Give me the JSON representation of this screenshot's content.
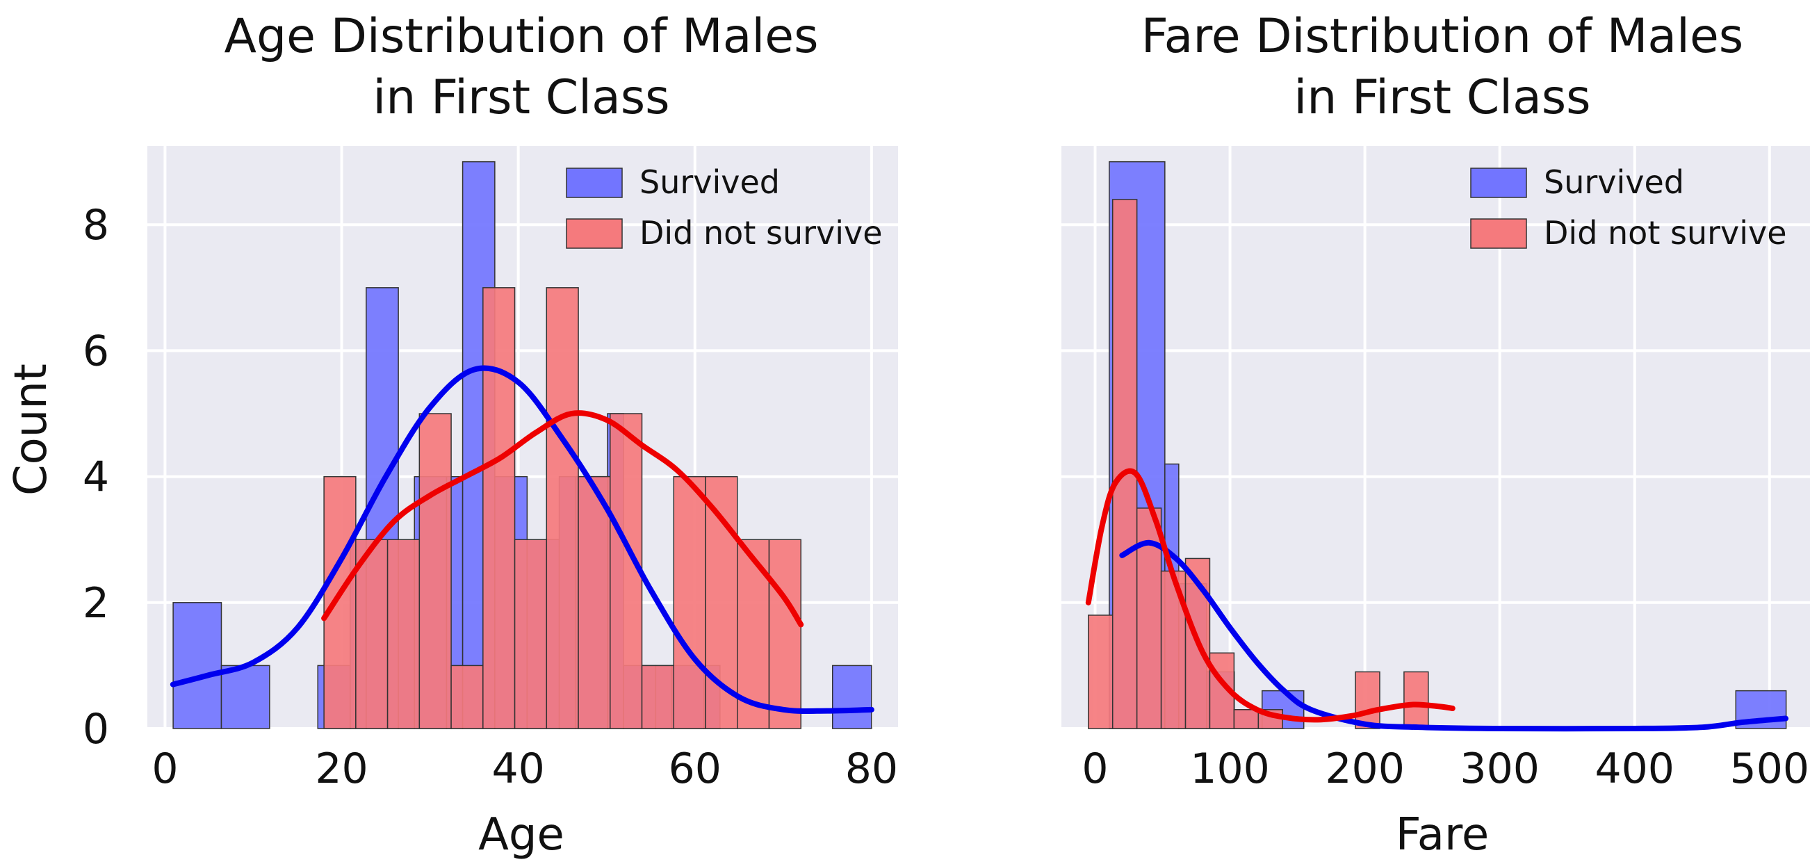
{
  "figure": {
    "background": "#ffffff",
    "plot_background": "#eaeaf2",
    "grid_color": "#ffffff"
  },
  "colors": {
    "survived_fill": "#7275ff",
    "survived_line": "#0000ee",
    "died_fill": "#f57a7d",
    "died_line": "#ee0000",
    "bar_edge": "#333333"
  },
  "chart_data": [
    {
      "type": "bar",
      "title_lines": [
        "Age Distribution of Males",
        "in First Class"
      ],
      "xlabel": "Age",
      "ylabel": "Count",
      "xlim": [
        -2,
        83
      ],
      "ylim": [
        0,
        9.25
      ],
      "xticks": [
        0,
        20,
        40,
        60,
        80
      ],
      "yticks": [
        0,
        2,
        4,
        6,
        8
      ],
      "grid": true,
      "legend": {
        "position": "top-right",
        "entries": [
          "Survived",
          "Did not survive"
        ]
      },
      "series": [
        {
          "name": "Survived",
          "bin_edges": [
            0.92,
            6.38,
            11.84,
            17.3,
            20.97,
            22.78,
            26.42,
            28.24,
            31.88,
            33.7,
            37.34,
            41.0,
            44.64,
            46.46,
            50.1,
            51.92,
            55.56,
            57.38,
            61.02,
            62.84,
            66.48,
            71.94,
            75.58,
            80.0
          ],
          "counts": [
            2,
            1,
            0,
            1,
            3,
            7,
            3,
            4,
            4,
            9,
            4,
            3,
            4,
            4,
            5,
            1,
            1,
            1,
            1,
            0,
            0,
            0,
            1
          ],
          "kde": [
            [
              0.9,
              0.7
            ],
            [
              5,
              0.85
            ],
            [
              10,
              1.05
            ],
            [
              15,
              1.6
            ],
            [
              20,
              2.7
            ],
            [
              25,
              4.0
            ],
            [
              30,
              5.1
            ],
            [
              35,
              5.7
            ],
            [
              40,
              5.5
            ],
            [
              45,
              4.6
            ],
            [
              50,
              3.5
            ],
            [
              55,
              2.2
            ],
            [
              60,
              1.1
            ],
            [
              65,
              0.5
            ],
            [
              70,
              0.3
            ],
            [
              75,
              0.28
            ],
            [
              80,
              0.3
            ]
          ]
        },
        {
          "name": "Did not survive",
          "bin_edges": [
            18,
            21.6,
            25.2,
            28.8,
            32.4,
            36.0,
            39.6,
            43.2,
            46.8,
            50.4,
            54.0,
            57.6,
            61.2,
            64.8,
            68.4,
            72.0
          ],
          "counts": [
            4,
            3,
            3,
            5,
            1,
            7,
            3,
            7,
            4,
            5,
            1,
            4,
            4,
            3,
            3
          ],
          "kde": [
            [
              18,
              1.75
            ],
            [
              22,
              2.6
            ],
            [
              26,
              3.3
            ],
            [
              30,
              3.7
            ],
            [
              34,
              4.0
            ],
            [
              38,
              4.3
            ],
            [
              42,
              4.7
            ],
            [
              46,
              5.0
            ],
            [
              50,
              4.9
            ],
            [
              54,
              4.5
            ],
            [
              58,
              4.1
            ],
            [
              62,
              3.5
            ],
            [
              66,
              2.8
            ],
            [
              70,
              2.1
            ],
            [
              72,
              1.65
            ]
          ]
        }
      ]
    },
    {
      "type": "bar",
      "title_lines": [
        "Fare Distribution of Males",
        "in First Class"
      ],
      "xlabel": "Fare",
      "ylabel": "",
      "xlim": [
        -25,
        530
      ],
      "ylim": [
        0,
        9.25
      ],
      "xticks": [
        0,
        100,
        200,
        300,
        400,
        500
      ],
      "yticks": [
        0,
        2,
        4,
        6,
        8
      ],
      "grid": true,
      "legend": {
        "position": "top-right",
        "entries": [
          "Survived",
          "Did not survive"
        ]
      },
      "series": [
        {
          "name": "Survived",
          "bin_edges": [
            10.5,
            51.7,
            62.0,
            82.6,
            103.2,
            123.8,
            154.7,
            475.0,
            512.3
          ],
          "counts": [
            9,
            4.2,
            2.3,
            0.9,
            0.3,
            0.6,
            0,
            0.6
          ],
          "kde": [
            [
              20,
              2.75
            ],
            [
              40,
              2.95
            ],
            [
              60,
              2.7
            ],
            [
              80,
              2.2
            ],
            [
              100,
              1.6
            ],
            [
              120,
              1.05
            ],
            [
              140,
              0.6
            ],
            [
              160,
              0.3
            ],
            [
              200,
              0.07
            ],
            [
              240,
              0.02
            ],
            [
              300,
              0.0
            ],
            [
              400,
              0.0
            ],
            [
              450,
              0.02
            ],
            [
              480,
              0.1
            ],
            [
              512,
              0.16
            ]
          ]
        },
        {
          "name": "Did not survive",
          "bin_edges": [
            -5,
            13,
            31,
            49,
            67,
            85,
            103,
            121,
            139,
            157,
            175,
            193,
            211,
            229,
            247,
            265
          ],
          "counts": [
            1.8,
            8.4,
            3.5,
            2.5,
            2.7,
            1.2,
            0.3,
            0.3,
            0,
            0,
            0,
            0.9,
            0,
            0.9,
            0
          ],
          "kde": [
            [
              -5,
              2.0
            ],
            [
              5,
              3.2
            ],
            [
              15,
              3.9
            ],
            [
              30,
              4.05
            ],
            [
              45,
              3.3
            ],
            [
              60,
              2.3
            ],
            [
              80,
              1.2
            ],
            [
              100,
              0.6
            ],
            [
              120,
              0.3
            ],
            [
              140,
              0.18
            ],
            [
              165,
              0.14
            ],
            [
              190,
              0.2
            ],
            [
              210,
              0.3
            ],
            [
              235,
              0.38
            ],
            [
              255,
              0.35
            ],
            [
              265,
              0.32
            ]
          ]
        }
      ]
    }
  ]
}
